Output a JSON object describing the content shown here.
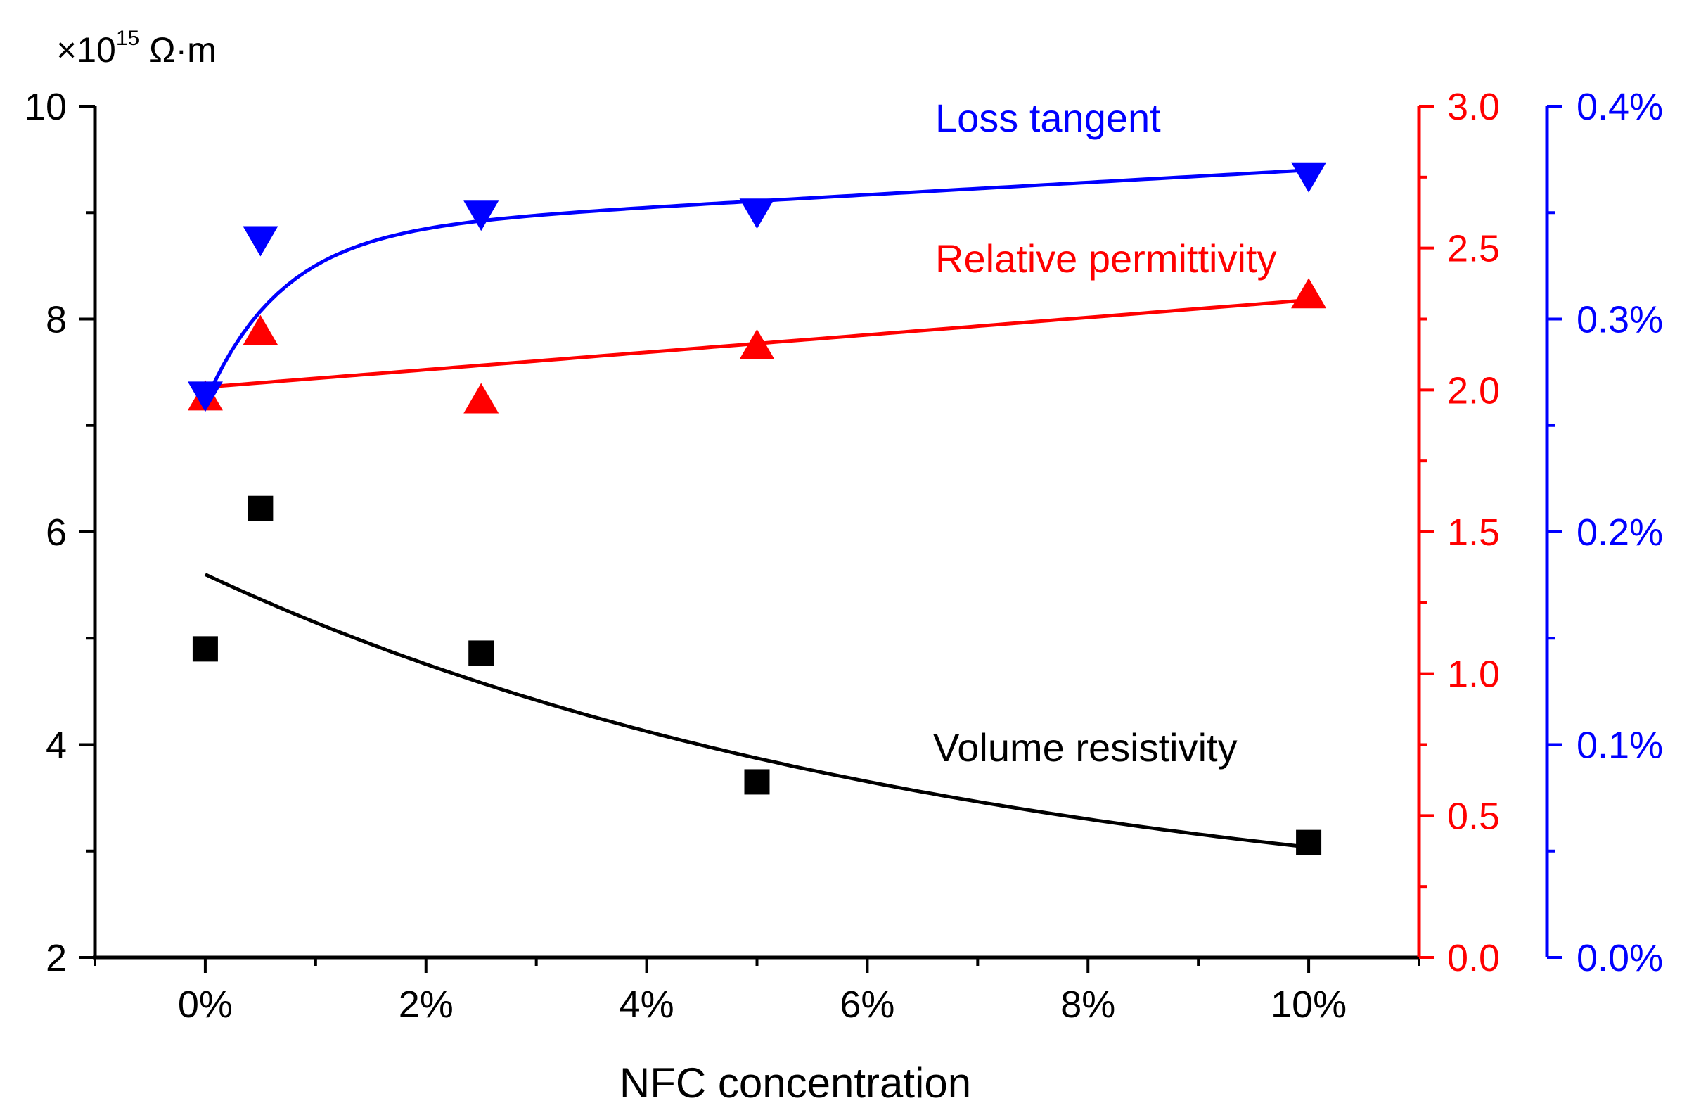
{
  "chart_data": {
    "type": "scatter",
    "xlabel": "NFC concentration",
    "x_ticks": [
      "0%",
      "2%",
      "4%",
      "6%",
      "8%",
      "10%"
    ],
    "xlim": [
      -1,
      11
    ],
    "y_left": {
      "unit_prefix": "×10",
      "unit_exponent": "15",
      "unit_suffix": " Ω·m",
      "ylim": [
        2,
        10
      ],
      "ticks": [
        "2",
        "4",
        "6",
        "8",
        "10"
      ],
      "color": "#000000"
    },
    "y_right_red": {
      "ylim": [
        0,
        3
      ],
      "ticks": [
        "0.0",
        "0.5",
        "1.0",
        "1.5",
        "2.0",
        "2.5",
        "3.0"
      ],
      "color": "#ff0000"
    },
    "y_right_blue": {
      "ylim": [
        0,
        0.4
      ],
      "ticks": [
        "0.0%",
        "0.1%",
        "0.2%",
        "0.3%",
        "0.4%"
      ],
      "color": "#0000ff"
    },
    "series": [
      {
        "name": "Volume resistivity",
        "marker": "square",
        "axis": "left",
        "color": "#000000",
        "x": [
          0,
          0.5,
          2.5,
          5,
          10
        ],
        "values": [
          4.9,
          6.22,
          4.86,
          3.65,
          3.08
        ],
        "fit": {
          "x0": 0,
          "x1": 10,
          "base": 2.25,
          "amplitude": 3.35,
          "rate": 0.145
        }
      },
      {
        "name": "Relative permittivity",
        "marker": "triangle-up",
        "axis": "right_red",
        "color": "#ff0000",
        "x": [
          0,
          0.5,
          2.5,
          5,
          10
        ],
        "values": [
          1.97,
          2.2,
          1.96,
          2.15,
          2.33
        ],
        "fit": {
          "x0": 0,
          "x1": 10,
          "intercept": 2.01,
          "slope": 0.0307
        }
      },
      {
        "name": "Loss tangent",
        "marker": "triangle-down",
        "axis": "right_blue",
        "color": "#0000ff",
        "x": [
          0,
          0.5,
          2.5,
          5,
          10
        ],
        "values": [
          0.265,
          0.338,
          0.35,
          0.351,
          0.368
        ],
        "fit": {
          "x0": 0.08,
          "x1": 10,
          "a": 0.341,
          "slope": 0.0029,
          "b": 0.08,
          "rate": 1.45
        }
      }
    ]
  }
}
